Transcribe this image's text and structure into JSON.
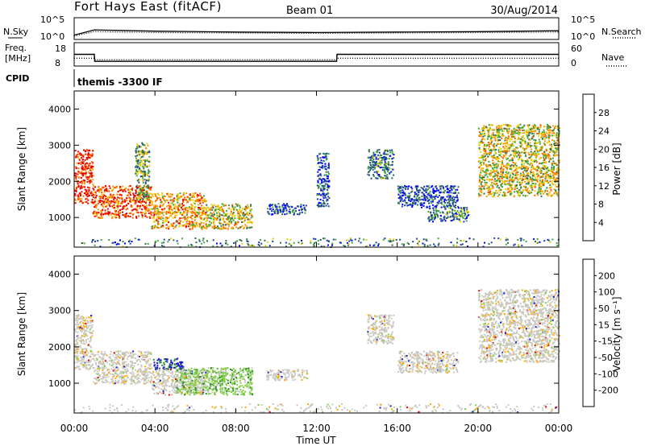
{
  "header": {
    "station": "Fort Hays East (fitACF)",
    "beam": "Beam 01",
    "date": "30/Aug/2014"
  },
  "noise_panel": {
    "left_label": "N.Sky",
    "right_label": "N.Search",
    "ticks_top": "10^5",
    "ticks_bottom": "10^0"
  },
  "freq_panel": {
    "left_label_1": "Freq.",
    "left_label_2": "[MHz]",
    "right_label": "Nave",
    "left_ticks": [
      "18",
      "8"
    ],
    "right_ticks": [
      "60",
      "0"
    ]
  },
  "cpid_panel": {
    "label": "CPID",
    "text": "themis -3300 IF"
  },
  "colors": {
    "power": [
      "#0000ff",
      "#1e3faa",
      "#2f6e4f",
      "#3fa63f",
      "#e6d200",
      "#ff9900",
      "#ff5a00",
      "#e60000"
    ],
    "velocity": [
      "#e60000",
      "#ff6600",
      "#ffaa00",
      "#c8c8c0",
      "#7fd03a",
      "#2f8a3a",
      "#1a1acc"
    ]
  },
  "chart_data": [
    {
      "type": "line",
      "title": "N.Sky / N.Search",
      "x": [
        "00:00",
        "01:00",
        "02:00",
        "04:00",
        "08:00",
        "12:00",
        "16:00",
        "20:00",
        "00:00"
      ],
      "series": [
        {
          "name": "N.Sky",
          "values": [
            1.0,
            2.2,
            2.1,
            1.9,
            1.7,
            1.6,
            1.7,
            1.8,
            2.0
          ]
        },
        {
          "name": "N.Search",
          "values": [
            0.8,
            1.8,
            1.7,
            1.6,
            1.5,
            1.4,
            1.5,
            1.6,
            1.7
          ]
        }
      ],
      "ylim": [
        "10^0",
        "10^5"
      ]
    },
    {
      "type": "line",
      "x": [
        "00:00",
        "01:00",
        "01:01",
        "13:00",
        "13:01",
        "00:00"
      ],
      "series": [
        {
          "name": "Freq.",
          "values": [
            13.0,
            13.0,
            10.0,
            10.0,
            13.0,
            13.0
          ]
        },
        {
          "name": "Nave",
          "values": [
            20,
            20,
            16,
            16,
            20,
            20
          ]
        }
      ],
      "ylim_left": [
        8,
        18
      ],
      "ylim_right": [
        0,
        60
      ]
    },
    {
      "type": "heatmap",
      "title": "Power",
      "xlabel": "Time UT",
      "ylabel": "Slant Range [km]",
      "x_ticks": [
        "00:00",
        "04:00",
        "08:00",
        "12:00",
        "16:00",
        "20:00",
        "00:00"
      ],
      "y_ticks": [
        "1000",
        "2000",
        "3000",
        "4000"
      ],
      "colorbar_label": "Power [dB]",
      "colorbar_ticks": [
        "4",
        "8",
        "12",
        "16",
        "20",
        "24",
        "28"
      ],
      "range_km": [
        180,
        4500
      ],
      "time_h": [
        0,
        24
      ],
      "patches": [
        {
          "t0": 0.0,
          "t1": 0.9,
          "r0": 1400,
          "r1": 2900,
          "level": 26
        },
        {
          "t0": 0.9,
          "t1": 3.8,
          "r0": 1000,
          "r1": 1900,
          "level": 22
        },
        {
          "t0": 3.0,
          "t1": 3.7,
          "r0": 1500,
          "r1": 3100,
          "level": 12
        },
        {
          "t0": 3.8,
          "t1": 6.5,
          "r0": 700,
          "r1": 1700,
          "level": 18
        },
        {
          "t0": 6.5,
          "t1": 8.8,
          "r0": 700,
          "r1": 1400,
          "level": 14
        },
        {
          "t0": 9.5,
          "t1": 11.5,
          "r0": 1100,
          "r1": 1400,
          "level": 4
        },
        {
          "t0": 12.0,
          "t1": 12.6,
          "r0": 1300,
          "r1": 2800,
          "level": 4
        },
        {
          "t0": 14.5,
          "t1": 15.8,
          "r0": 2100,
          "r1": 2900,
          "level": 6
        },
        {
          "t0": 16.0,
          "t1": 19.0,
          "r0": 1300,
          "r1": 1900,
          "level": 4
        },
        {
          "t0": 17.5,
          "t1": 19.5,
          "r0": 900,
          "r1": 1300,
          "level": 8
        },
        {
          "t0": 20.0,
          "t1": 24.0,
          "r0": 1600,
          "r1": 3600,
          "level": 16
        }
      ]
    },
    {
      "type": "heatmap",
      "title": "Velocity",
      "xlabel": "Time UT",
      "ylabel": "Slant Range [km]",
      "x_ticks": [
        "00:00",
        "04:00",
        "08:00",
        "12:00",
        "16:00",
        "20:00",
        "00:00"
      ],
      "y_ticks": [
        "1000",
        "2000",
        "3000",
        "4000"
      ],
      "colorbar_label": "Velocity [m s⁻¹]",
      "colorbar_ticks": [
        "-200",
        "-100",
        "-50",
        "-15",
        "15",
        "50",
        "100",
        "200"
      ],
      "range_km": [
        180,
        4500
      ],
      "time_h": [
        0,
        24
      ],
      "patches": [
        {
          "t0": 0.0,
          "t1": 0.9,
          "r0": 1400,
          "r1": 2900,
          "level": 0
        },
        {
          "t0": 0.9,
          "t1": 3.8,
          "r0": 1000,
          "r1": 1900,
          "level": 0
        },
        {
          "t0": 3.9,
          "t1": 5.4,
          "r0": 1400,
          "r1": 1700,
          "level": 220
        },
        {
          "t0": 3.8,
          "t1": 6.5,
          "r0": 700,
          "r1": 1400,
          "level": 0
        },
        {
          "t0": 5.0,
          "t1": 8.8,
          "r0": 700,
          "r1": 1450,
          "level": 30
        },
        {
          "t0": 9.5,
          "t1": 11.5,
          "r0": 1100,
          "r1": 1400,
          "level": 0
        },
        {
          "t0": 14.5,
          "t1": 15.8,
          "r0": 2100,
          "r1": 2900,
          "level": 0
        },
        {
          "t0": 16.0,
          "t1": 19.0,
          "r0": 1300,
          "r1": 1900,
          "level": 0
        },
        {
          "t0": 20.0,
          "t1": 24.0,
          "r0": 1600,
          "r1": 3600,
          "level": 0
        }
      ]
    }
  ]
}
